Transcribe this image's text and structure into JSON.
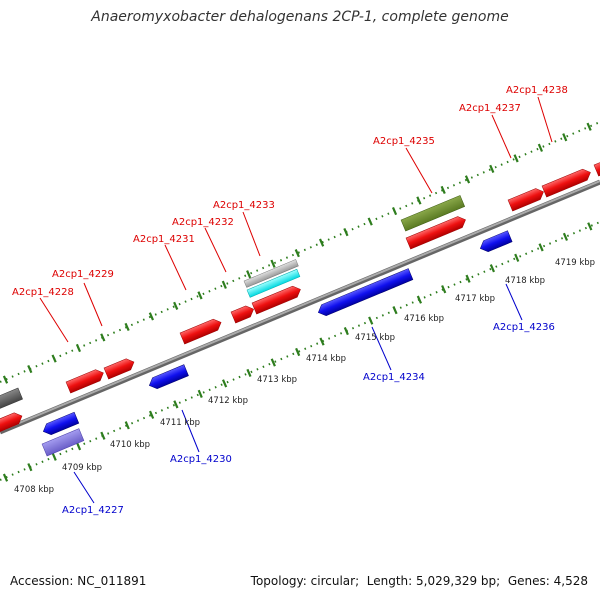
{
  "title": "Anaeromyxobacter dehalogenans 2CP-1, complete genome",
  "footer": {
    "accession_label": "Accession:",
    "accession_value": "NC_011891",
    "topology_label": "Topology:",
    "topology_value": "circular",
    "length_label": "Length:",
    "length_value": "5,029,329 bp",
    "genes_label": "Genes:",
    "genes_value": "4,528"
  },
  "colors": {
    "forward_label": "#dd0000",
    "reverse_label": "#0000cc",
    "backbone": "#888888",
    "dotted_track": "#2e7d1e"
  },
  "ticks": [
    "4708 kbp",
    "4709 kbp",
    "4710 kbp",
    "4711 kbp",
    "4712 kbp",
    "4713 kbp",
    "4714 kbp",
    "4715 kbp",
    "4716 kbp",
    "4717 kbp",
    "4718 kbp",
    "4719 kbp"
  ],
  "forward_labels": [
    "A2cp1_4228",
    "A2cp1_4229",
    "A2cp1_4231",
    "A2cp1_4232",
    "A2cp1_4233",
    "A2cp1_4235",
    "A2cp1_4237",
    "A2cp1_4238"
  ],
  "reverse_labels": [
    "A2cp1_4227",
    "A2cp1_4230",
    "A2cp1_4234",
    "A2cp1_4236"
  ]
}
